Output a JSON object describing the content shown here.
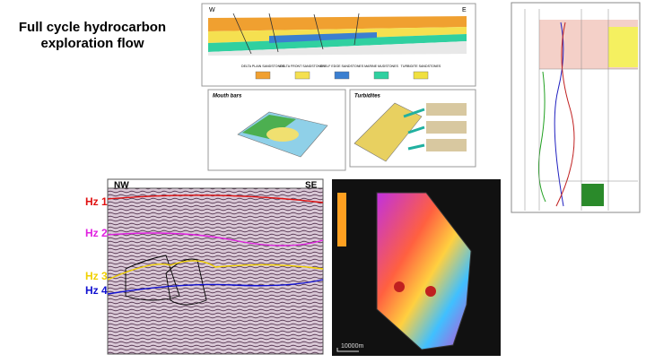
{
  "header": {
    "title_lines": [
      "Full cycle hydrocarbon",
      "exploration flow"
    ]
  },
  "cross_section": {
    "left_label": "W",
    "right_label": "E",
    "legend": [
      {
        "label": "DELTA PLAIN SANDSTONES",
        "color": "#f0a030"
      },
      {
        "label": "DELTA FRONT SANDSTONES",
        "color": "#f5e050"
      },
      {
        "label": "SHELF EDGE SANDSTONES",
        "color": "#3b7fd0"
      },
      {
        "label": "MARINE MUDSTONES",
        "color": "#30d0a0"
      },
      {
        "label": "TURBIDITE SANDSTONES",
        "color": "#f0e040"
      }
    ]
  },
  "block_diagrams": [
    {
      "title": "Mouth bars"
    },
    {
      "title": "Turbidites"
    }
  ],
  "seismic": {
    "left_label": "NW",
    "right_label": "SE",
    "horizons": [
      {
        "label": "Hz 1",
        "color": "#e01010"
      },
      {
        "label": "Hz 2",
        "color": "#e020e0"
      },
      {
        "label": "Hz 3",
        "color": "#f0d000"
      },
      {
        "label": "Hz 4",
        "color": "#1010d0"
      }
    ]
  },
  "map": {
    "scale_label": "10000m"
  }
}
